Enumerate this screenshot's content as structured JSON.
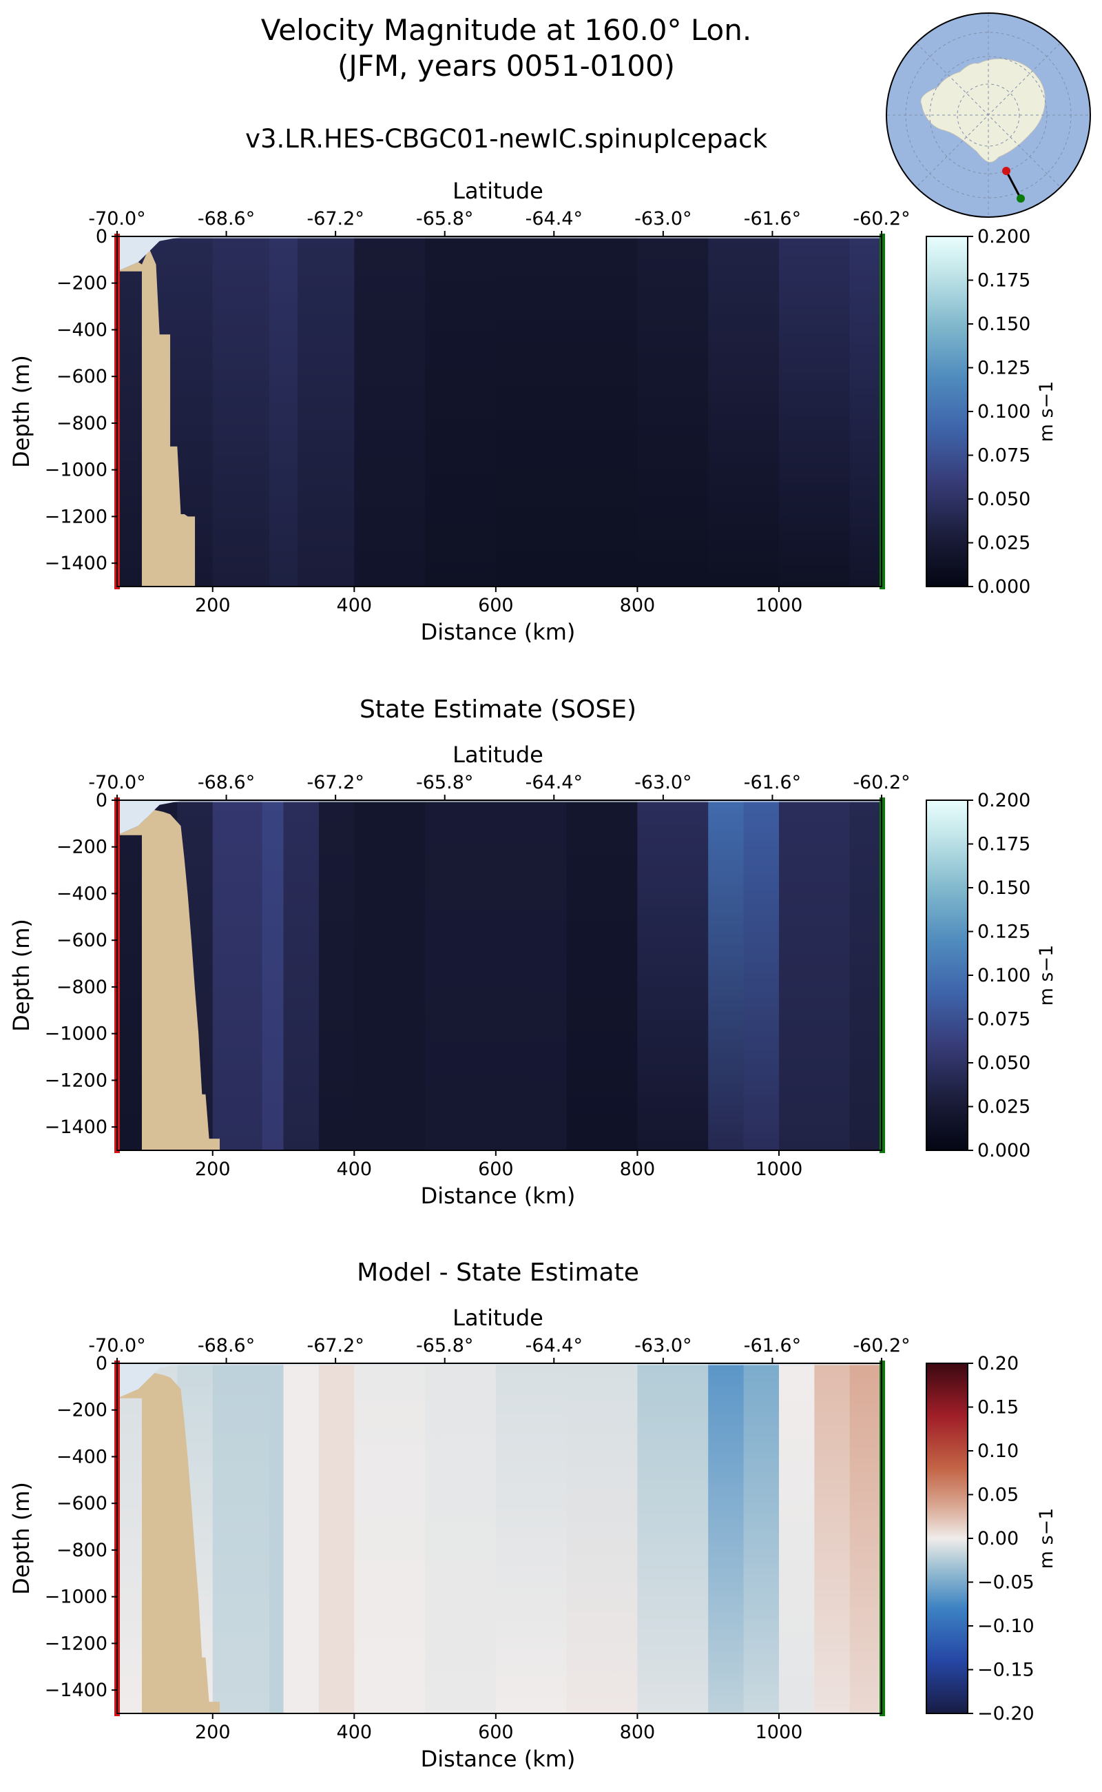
{
  "figure": {
    "title_line1": "Velocity Magnitude at 160.0° Lon.",
    "title_line2": "(JFM, years 0051-0100)",
    "run_name": "v3.LR.HES-CBGC01-newIC.spinupIcepack"
  },
  "colors": {
    "land": "#d7bf98",
    "start_marker": "#d21414",
    "end_marker": "#0a7a0a",
    "ocean_map": "#9bb7e0",
    "continent": "#eeeedd"
  },
  "chart_data": [
    {
      "type": "heatmap",
      "title": "",
      "xlabel": "Distance (km)",
      "ylabel": "Depth (m)",
      "top_axis_label": "Latitude",
      "xlim": [
        65,
        1145
      ],
      "ylim": [
        -1500,
        0
      ],
      "x_ticks": [
        "200",
        "400",
        "600",
        "800",
        "1000"
      ],
      "y_ticks": [
        "0",
        "−200",
        "−400",
        "−600",
        "−800",
        "−1000",
        "−1200",
        "−1400"
      ],
      "lat_ticks": [
        "-70.0°",
        "-68.6°",
        "-67.2°",
        "-65.8°",
        "-64.4°",
        "-63.0°",
        "-61.6°",
        "-60.2°"
      ],
      "colorbar": {
        "label": "m s−1",
        "range": [
          0.0,
          0.2
        ],
        "ticks": [
          "0.200",
          "0.175",
          "0.150",
          "0.125",
          "0.100",
          "0.075",
          "0.050",
          "0.025",
          "0.000"
        ],
        "colormap": "ice"
      },
      "bathymetry": [
        [
          65,
          -150
        ],
        [
          100,
          -150
        ],
        [
          100,
          -1500
        ],
        [
          175,
          -1500
        ],
        [
          175,
          -1200
        ],
        [
          165,
          -1200
        ],
        [
          160,
          -1190
        ],
        [
          155,
          -1190
        ],
        [
          150,
          -900
        ],
        [
          140,
          -900
        ],
        [
          140,
          -420
        ],
        [
          125,
          -420
        ],
        [
          120,
          -120
        ],
        [
          110,
          -50
        ],
        [
          100,
          -120
        ],
        [
          95,
          -110
        ]
      ],
      "profile_x": [
        65,
        100,
        200,
        280,
        320,
        400,
        500,
        600,
        700,
        800,
        900,
        1000,
        1100,
        1145
      ],
      "surface_speed": [
        0.03,
        0.04,
        0.04,
        0.05,
        0.05,
        0.03,
        0.02,
        0.02,
        0.02,
        0.02,
        0.03,
        0.04,
        0.05,
        0.05
      ],
      "deep_speed": [
        0.02,
        0.02,
        0.025,
        0.03,
        0.035,
        0.02,
        0.015,
        0.012,
        0.012,
        0.012,
        0.012,
        0.012,
        0.015,
        0.02
      ]
    },
    {
      "type": "heatmap",
      "title": "State Estimate (SOSE)",
      "xlabel": "Distance (km)",
      "ylabel": "Depth (m)",
      "top_axis_label": "Latitude",
      "xlim": [
        65,
        1145
      ],
      "ylim": [
        -1500,
        0
      ],
      "x_ticks": [
        "200",
        "400",
        "600",
        "800",
        "1000"
      ],
      "y_ticks": [
        "0",
        "−200",
        "−400",
        "−600",
        "−800",
        "−1000",
        "−1200",
        "−1400"
      ],
      "lat_ticks": [
        "-70.0°",
        "-68.6°",
        "-67.2°",
        "-65.8°",
        "-64.4°",
        "-63.0°",
        "-61.6°",
        "-60.2°"
      ],
      "colorbar": {
        "label": "m s−1",
        "range": [
          0.0,
          0.2
        ],
        "ticks": [
          "0.200",
          "0.175",
          "0.150",
          "0.125",
          "0.100",
          "0.075",
          "0.050",
          "0.025",
          "0.000"
        ],
        "colormap": "ice"
      },
      "bathymetry": [
        [
          65,
          -150
        ],
        [
          100,
          -150
        ],
        [
          100,
          -1500
        ],
        [
          210,
          -1500
        ],
        [
          210,
          -1450
        ],
        [
          195,
          -1450
        ],
        [
          190,
          -1260
        ],
        [
          185,
          -1260
        ],
        [
          180,
          -1000
        ],
        [
          175,
          -810
        ],
        [
          170,
          -600
        ],
        [
          165,
          -410
        ],
        [
          160,
          -250
        ],
        [
          155,
          -110
        ],
        [
          140,
          -60
        ],
        [
          130,
          -50
        ],
        [
          115,
          -40
        ],
        [
          105,
          -80
        ],
        [
          95,
          -110
        ]
      ],
      "profile_x": [
        65,
        150,
        200,
        270,
        300,
        350,
        400,
        500,
        600,
        700,
        800,
        900,
        950,
        1000,
        1100,
        1145
      ],
      "surface_speed": [
        0.02,
        0.03,
        0.04,
        0.07,
        0.06,
        0.03,
        0.02,
        0.02,
        0.03,
        0.02,
        0.02,
        0.07,
        0.12,
        0.05,
        0.04,
        0.04
      ],
      "deep_speed": [
        0.015,
        0.02,
        0.03,
        0.06,
        0.05,
        0.02,
        0.02,
        0.02,
        0.025,
        0.02,
        0.01,
        0.03,
        0.05,
        0.04,
        0.03,
        0.03
      ]
    },
    {
      "type": "heatmap",
      "title": "Model - State Estimate",
      "xlabel": "Distance (km)",
      "ylabel": "Depth (m)",
      "top_axis_label": "Latitude",
      "xlim": [
        65,
        1145
      ],
      "ylim": [
        -1500,
        0
      ],
      "x_ticks": [
        "200",
        "400",
        "600",
        "800",
        "1000"
      ],
      "y_ticks": [
        "0",
        "−200",
        "−400",
        "−600",
        "−800",
        "−1000",
        "−1200",
        "−1400"
      ],
      "lat_ticks": [
        "-70.0°",
        "-68.6°",
        "-67.2°",
        "-65.8°",
        "-64.4°",
        "-63.0°",
        "-61.6°",
        "-60.2°"
      ],
      "colorbar": {
        "label": "m s−1",
        "range": [
          -0.2,
          0.2
        ],
        "ticks": [
          "0.20",
          "0.15",
          "0.10",
          "0.05",
          "0.00",
          "−0.05",
          "−0.10",
          "−0.15",
          "−0.20"
        ],
        "colormap": "balance"
      },
      "bathymetry": [
        [
          65,
          -150
        ],
        [
          100,
          -150
        ],
        [
          100,
          -1500
        ],
        [
          210,
          -1500
        ],
        [
          210,
          -1450
        ],
        [
          195,
          -1450
        ],
        [
          190,
          -1260
        ],
        [
          185,
          -1260
        ],
        [
          180,
          -1000
        ],
        [
          175,
          -810
        ],
        [
          170,
          -600
        ],
        [
          165,
          -410
        ],
        [
          160,
          -250
        ],
        [
          155,
          -110
        ],
        [
          140,
          -60
        ],
        [
          130,
          -50
        ],
        [
          115,
          -40
        ],
        [
          105,
          -80
        ],
        [
          95,
          -110
        ]
      ],
      "profile_x": [
        65,
        150,
        200,
        280,
        300,
        350,
        400,
        500,
        600,
        700,
        800,
        900,
        950,
        1000,
        1050,
        1100,
        1145
      ],
      "surface_speed": [
        0.0,
        -0.02,
        -0.01,
        -0.03,
        -0.01,
        0.01,
        0.005,
        -0.01,
        0.0,
        -0.02,
        0.0,
        -0.05,
        -0.08,
        -0.02,
        0.02,
        0.03,
        0.04
      ],
      "deep_speed": [
        0.0,
        0.0,
        0.0,
        -0.03,
        -0.01,
        0.01,
        0.005,
        -0.005,
        0.0,
        0.0,
        0.005,
        -0.02,
        -0.02,
        -0.01,
        0.0,
        0.01,
        0.01
      ]
    }
  ]
}
